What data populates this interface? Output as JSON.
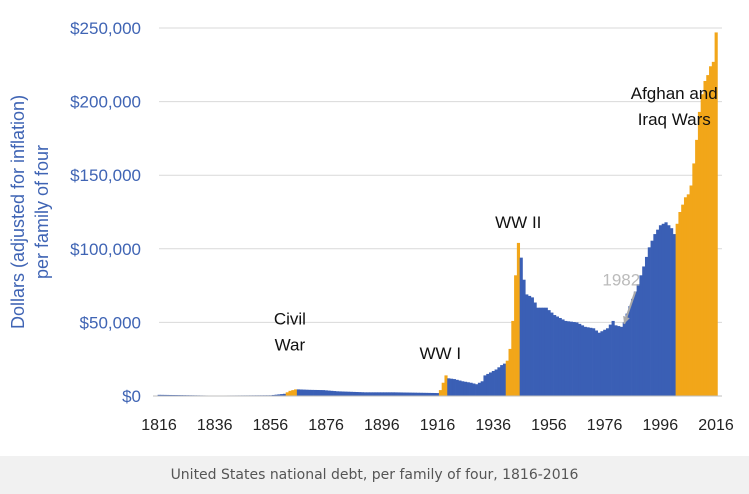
{
  "caption": "United States national debt, per family of four, 1816-2016",
  "colors": {
    "peace": "#3a5fb5",
    "war": "#f2a619",
    "axis_text": "#3f64b4",
    "annotation": "#111111",
    "annotation_gray": "#bbbbbb",
    "grid": "#d9d9d9"
  },
  "chart_data": {
    "type": "bar",
    "title": "",
    "xlabel": "",
    "ylabel_lines": [
      "Dollars (adjusted for inflation)",
      "per family of four"
    ],
    "ylim": [
      0,
      250000
    ],
    "yticks": [
      0,
      50000,
      100000,
      150000,
      200000,
      250000
    ],
    "ytick_labels": [
      "$0",
      "$50,000",
      "$100,000",
      "$150,000",
      "$200,000",
      "$250,000"
    ],
    "xlim": [
      1816,
      2016
    ],
    "xticks": [
      1816,
      1836,
      1856,
      1876,
      1896,
      1916,
      1936,
      1956,
      1976,
      1996,
      2016
    ],
    "xtick_labels": [
      "1816",
      "1836",
      "1856",
      "1876",
      "1896",
      "1916",
      "1936",
      "1956",
      "1976",
      "1996",
      "2016"
    ],
    "grid": "horizontal",
    "war_ranges": [
      [
        1862,
        1865
      ],
      [
        1917,
        1919
      ],
      [
        1941,
        1945
      ],
      [
        2002,
        2016
      ]
    ],
    "annotations": [
      {
        "lines": [
          "Civil",
          "War"
        ],
        "x": 1863,
        "y": 31000,
        "style": "dark"
      },
      {
        "lines": [
          "WW I"
        ],
        "x": 1917,
        "y": 25000,
        "style": "dark"
      },
      {
        "lines": [
          "WW II"
        ],
        "x": 1945,
        "y": 114000,
        "style": "dark"
      },
      {
        "lines": [
          "Afghan and",
          "Iraq Wars"
        ],
        "x": 2001,
        "y": 184000,
        "style": "dark"
      },
      {
        "lines": [
          "1982"
        ],
        "x": 1982,
        "y": 75000,
        "style": "gray",
        "arrow_to": [
          1983,
          49000
        ]
      }
    ],
    "anchors": [
      [
        1816,
        800
      ],
      [
        1835,
        300
      ],
      [
        1856,
        500
      ],
      [
        1861,
        1500
      ],
      [
        1862,
        2500
      ],
      [
        1863,
        3500
      ],
      [
        1864,
        4000
      ],
      [
        1865,
        4500
      ],
      [
        1866,
        4500
      ],
      [
        1870,
        4200
      ],
      [
        1875,
        4000
      ],
      [
        1880,
        3200
      ],
      [
        1890,
        2500
      ],
      [
        1900,
        2500
      ],
      [
        1910,
        2200
      ],
      [
        1916,
        2000
      ],
      [
        1917,
        4000
      ],
      [
        1918,
        9000
      ],
      [
        1919,
        14000
      ],
      [
        1920,
        12000
      ],
      [
        1922,
        11500
      ],
      [
        1925,
        10000
      ],
      [
        1928,
        9000
      ],
      [
        1930,
        8000
      ],
      [
        1932,
        10000
      ],
      [
        1933,
        14000
      ],
      [
        1935,
        16000
      ],
      [
        1937,
        18000
      ],
      [
        1939,
        21000
      ],
      [
        1940,
        22000
      ],
      [
        1941,
        24000
      ],
      [
        1942,
        32000
      ],
      [
        1943,
        51000
      ],
      [
        1944,
        82000
      ],
      [
        1945,
        104000
      ],
      [
        1946,
        94000
      ],
      [
        1947,
        79000
      ],
      [
        1948,
        69000
      ],
      [
        1950,
        67000
      ],
      [
        1952,
        60000
      ],
      [
        1955,
        60000
      ],
      [
        1958,
        55000
      ],
      [
        1962,
        51000
      ],
      [
        1966,
        50000
      ],
      [
        1969,
        47000
      ],
      [
        1972,
        46000
      ],
      [
        1974,
        43000
      ],
      [
        1977,
        46000
      ],
      [
        1979,
        51000
      ],
      [
        1980,
        48000
      ],
      [
        1982,
        47000
      ],
      [
        1983,
        50000
      ],
      [
        1984,
        56000
      ],
      [
        1986,
        66000
      ],
      [
        1988,
        76000
      ],
      [
        1990,
        88000
      ],
      [
        1992,
        101000
      ],
      [
        1994,
        110000
      ],
      [
        1996,
        116000
      ],
      [
        1998,
        118000
      ],
      [
        2000,
        114000
      ],
      [
        2001,
        110000
      ],
      [
        2002,
        117000
      ],
      [
        2003,
        125000
      ],
      [
        2004,
        130000
      ],
      [
        2005,
        135000
      ],
      [
        2006,
        137000
      ],
      [
        2007,
        143000
      ],
      [
        2008,
        158000
      ],
      [
        2009,
        174000
      ],
      [
        2010,
        193000
      ],
      [
        2011,
        205000
      ],
      [
        2012,
        214000
      ],
      [
        2013,
        218000
      ],
      [
        2014,
        224000
      ],
      [
        2015,
        227000
      ],
      [
        2016,
        247000
      ]
    ]
  }
}
